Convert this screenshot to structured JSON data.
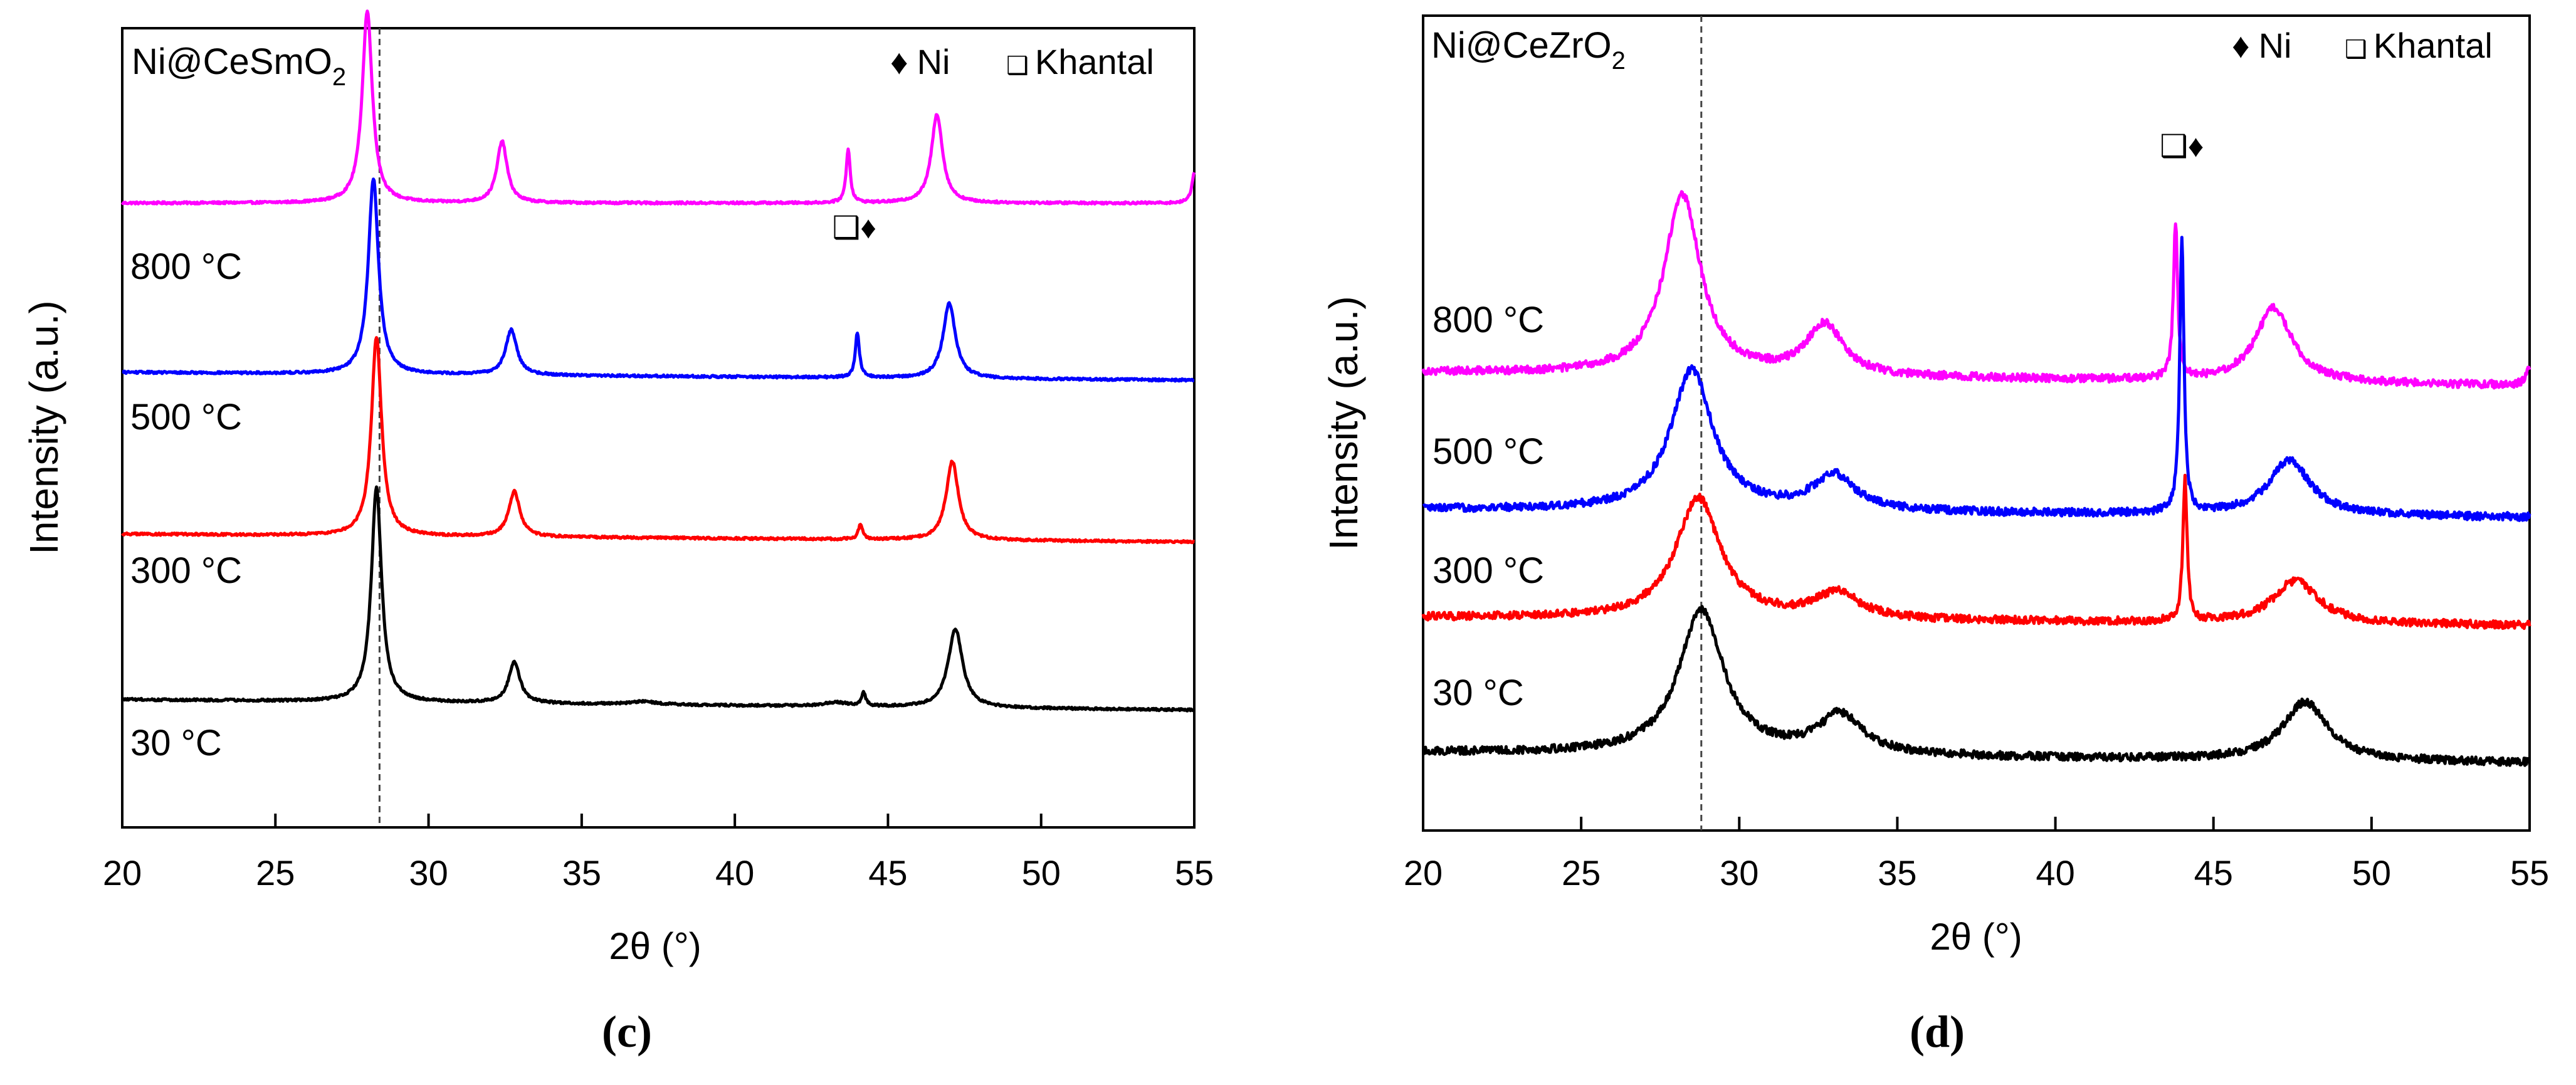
{
  "figure": {
    "panels": [
      {
        "id": "c",
        "caption": "(c)",
        "sample_label": "Ni@CeSmO",
        "sample_subscript": "2",
        "ylabel": "Intensity (a.u.)",
        "xlabel": "2θ (°)",
        "xlim": [
          20,
          55
        ],
        "xticks": [
          20,
          25,
          30,
          35,
          40,
          45,
          50,
          55
        ],
        "reference_line_x": 28.4,
        "legend": [
          {
            "symbol": "♦",
            "label": "Ni"
          },
          {
            "symbol": "❑",
            "label": "Khantal"
          }
        ],
        "peak_markers": {
          "text": "❑♦",
          "x": 43.9
        },
        "series": [
          {
            "name": "800 °C",
            "color": "#ff00ff"
          },
          {
            "name": "500 °C",
            "color": "#0000ff"
          },
          {
            "name": "300 °C",
            "color": "#ff0000"
          },
          {
            "name": "30 °C",
            "color": "#000000"
          }
        ]
      },
      {
        "id": "d",
        "caption": "(d)",
        "sample_label": "Ni@CeZrO",
        "sample_subscript": "2",
        "ylabel": "Intensity (a.u.)",
        "xlabel": "2θ (°)",
        "xlim": [
          20,
          55
        ],
        "xticks": [
          20,
          25,
          30,
          35,
          40,
          45,
          50,
          55
        ],
        "reference_line_x": 28.8,
        "legend": [
          {
            "symbol": "♦",
            "label": "Ni"
          },
          {
            "symbol": "❑",
            "label": "Khantal"
          }
        ],
        "peak_markers": {
          "text": "❑♦",
          "x": 44.0
        },
        "series": [
          {
            "name": "800 °C",
            "color": "#ff00ff"
          },
          {
            "name": "500 °C",
            "color": "#0000ff"
          },
          {
            "name": "300 °C",
            "color": "#ff0000"
          },
          {
            "name": "30 °C",
            "color": "#000000"
          }
        ]
      }
    ]
  },
  "chart_data": [
    {
      "type": "line",
      "title": "Ni@CeSmO2",
      "xlabel": "2θ (°)",
      "ylabel": "Intensity (a.u.)",
      "xlim": [
        20,
        55
      ],
      "ylim": [
        0,
        10
      ],
      "grid": false,
      "legend_position": "top-right",
      "series": [
        {
          "name": "800 °C",
          "baseline": 8.3,
          "slope": 0.0,
          "peaks": [
            [
              28.0,
              2.55,
              0.2
            ],
            [
              32.4,
              0.82,
              0.2
            ],
            [
              43.7,
              0.72,
              0.08
            ],
            [
              46.6,
              1.18,
              0.22
            ],
            [
              55.0,
              0.4,
              0.1
            ]
          ]
        },
        {
          "name": "500 °C",
          "baseline": 6.05,
          "slope": -0.003,
          "peaks": [
            [
              28.2,
              2.6,
              0.2
            ],
            [
              32.7,
              0.6,
              0.22
            ],
            [
              44.0,
              0.6,
              0.08
            ],
            [
              47.0,
              1.0,
              0.24
            ]
          ]
        },
        {
          "name": "300 °C",
          "baseline": 3.9,
          "slope": -0.003,
          "peaks": [
            [
              28.3,
              2.65,
              0.2
            ],
            [
              32.8,
              0.6,
              0.22
            ],
            [
              44.1,
              0.2,
              0.08
            ],
            [
              47.1,
              1.05,
              0.24
            ]
          ]
        },
        {
          "name": "30 °C",
          "baseline": 1.7,
          "slope": -0.004,
          "peaks": [
            [
              28.3,
              2.85,
              0.2
            ],
            [
              32.8,
              0.55,
              0.22
            ],
            [
              37.0,
              0.04,
              0.5
            ],
            [
              43.3,
              0.05,
              0.5
            ],
            [
              44.2,
              0.18,
              0.08
            ],
            [
              47.2,
              1.05,
              0.28
            ]
          ]
        }
      ]
    },
    {
      "type": "line",
      "title": "Ni@CeZrO2",
      "xlabel": "2θ (°)",
      "ylabel": "Intensity (a.u.)",
      "xlim": [
        20,
        55
      ],
      "ylim": [
        0,
        10
      ],
      "grid": false,
      "legend_position": "top-right",
      "series": [
        {
          "name": "800 °C",
          "baseline": 5.85,
          "slope": -0.005,
          "peaks": [
            [
              28.2,
              2.3,
              0.7
            ],
            [
              32.7,
              0.65,
              0.7
            ],
            [
              43.8,
              2.0,
              0.08
            ],
            [
              46.9,
              0.95,
              0.7
            ],
            [
              55.0,
              0.2,
              0.15
            ]
          ]
        },
        {
          "name": "500 °C",
          "baseline": 4.1,
          "slope": -0.003,
          "peaks": [
            [
              28.5,
              1.8,
              0.8
            ],
            [
              33.0,
              0.45,
              0.8
            ],
            [
              44.0,
              3.5,
              0.08
            ],
            [
              47.4,
              0.7,
              0.8
            ]
          ]
        },
        {
          "name": "300 °C",
          "baseline": 2.72,
          "slope": -0.003,
          "peaks": [
            [
              28.7,
              1.55,
              0.85
            ],
            [
              33.1,
              0.33,
              0.85
            ],
            [
              44.1,
              1.8,
              0.08
            ],
            [
              47.6,
              0.55,
              0.85
            ]
          ]
        },
        {
          "name": "30 °C",
          "baseline": 1.0,
          "slope": -0.004,
          "peaks": [
            [
              28.8,
              1.85,
              0.85
            ],
            [
              33.2,
              0.5,
              0.85
            ],
            [
              47.9,
              0.75,
              0.85
            ]
          ]
        }
      ]
    }
  ]
}
